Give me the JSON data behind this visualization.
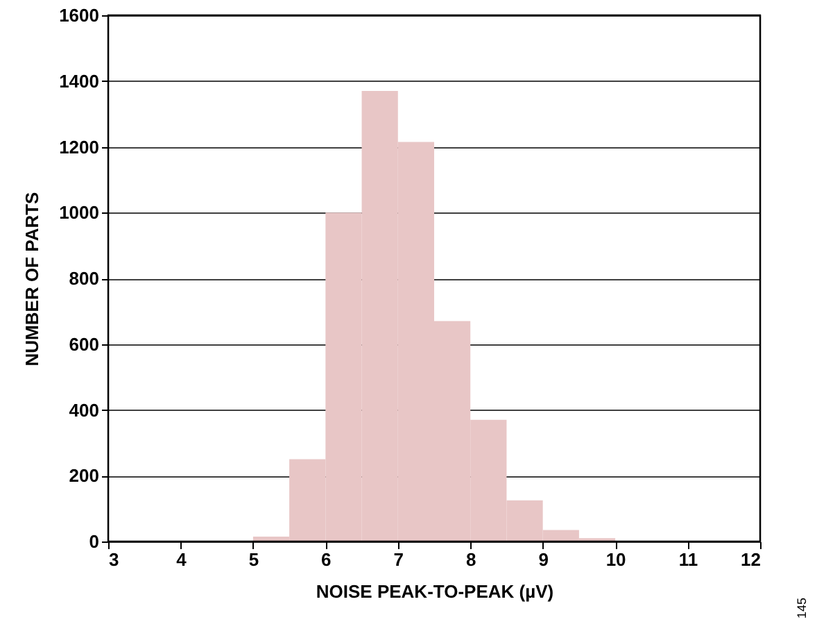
{
  "chart_data": {
    "type": "histogram",
    "xlabel": "NOISE PEAK-TO-PEAK (µV)",
    "ylabel": "NUMBER OF PARTS",
    "bins": [
      5,
      5.5,
      6,
      6.5,
      7,
      7.5,
      8,
      8.5,
      9,
      9.5,
      10
    ],
    "values": [
      15,
      250,
      1000,
      1370,
      1215,
      670,
      370,
      125,
      35,
      10
    ],
    "color": "#e8c6c6",
    "xlim": [
      3,
      12
    ],
    "xticks": [
      3,
      4,
      5,
      6,
      7,
      8,
      9,
      10,
      11,
      12
    ],
    "ylim": [
      0,
      1600
    ],
    "yticks": [
      0,
      200,
      400,
      600,
      800,
      1000,
      1200,
      1400,
      1600
    ],
    "grid": "y",
    "annotations": [
      "145"
    ]
  }
}
